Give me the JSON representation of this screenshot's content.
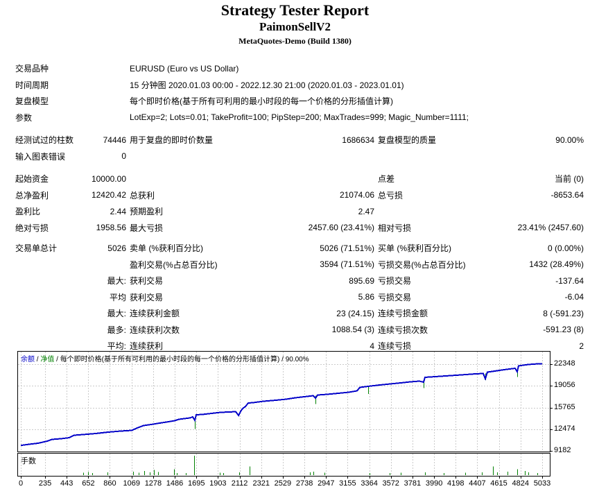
{
  "header": {
    "title": "Strategy Tester Report",
    "subtitle": "PaimonSellV2",
    "server": "MetaQuotes-Demo (Build 1380)"
  },
  "report": {
    "rows": [
      {
        "wide": true,
        "cells": [
          "交易品种",
          "",
          "EURUSD (Euro vs US Dollar)",
          "",
          "",
          ""
        ]
      },
      {
        "wide": true,
        "cells": [
          "时间周期",
          "",
          "15 分钟图 2020.01.03 00:00 - 2022.12.30 21:00 (2020.01.03 - 2023.01.01)",
          "",
          "",
          ""
        ]
      },
      {
        "wide": true,
        "cells": [
          "复盘模型",
          "",
          "每个即时价格(基于所有可利用的最小时段的每一个价格的分形插值计算)",
          "",
          "",
          ""
        ]
      },
      {
        "wide": true,
        "cells": [
          "参数",
          "",
          "LotExp=2; Lots=0.01; TakeProfit=100; PipStep=200; MaxTrades=999; Magic_Number=1111;",
          "",
          "",
          ""
        ]
      },
      {
        "gap": 9,
        "cells": [
          "经测试过的柱数",
          "74446",
          "用于复盘的即时价数量",
          "1686634",
          "复盘模型的质量",
          "90.00%"
        ]
      },
      {
        "cells": [
          "输入图表错误",
          "0",
          "",
          "",
          "",
          ""
        ]
      },
      {
        "gap": 9,
        "cells": [
          "起始资金",
          "10000.00",
          "",
          "",
          "点差",
          "当前 (0)"
        ]
      },
      {
        "cells": [
          "总净盈利",
          "12420.42",
          "总获利",
          "21074.06",
          "总亏损",
          "-8653.64"
        ]
      },
      {
        "cells": [
          "盈利比",
          "2.44",
          "预期盈利",
          "2.47",
          "",
          ""
        ]
      },
      {
        "cells": [
          "绝对亏损",
          "1958.56",
          "最大亏损",
          "2457.60 (23.41%)",
          "相对亏损",
          "23.41% (2457.60)"
        ]
      },
      {
        "gap": 6,
        "cells": [
          "交易单总计",
          "5026",
          "卖单 (%获利百分比)",
          "5026 (71.51%)",
          "买单 (%获利百分比)",
          "0 (0.00%)"
        ]
      },
      {
        "cells": [
          "",
          "",
          "盈利交易(%占总百分比)",
          "3594 (71.51%)",
          "亏损交易(%占总百分比)",
          "1432 (28.49%)"
        ]
      },
      {
        "cells": [
          "",
          "最大:",
          "获利交易",
          "895.69",
          "亏损交易",
          "-137.64"
        ]
      },
      {
        "cells": [
          "",
          "平均",
          "获利交易",
          "5.86",
          "亏损交易",
          "-6.04"
        ]
      },
      {
        "cells": [
          "",
          "最大:",
          "连续获利金额",
          "23 (24.15)",
          "连续亏损金额",
          "8 (-591.23)"
        ]
      },
      {
        "cells": [
          "",
          "最多:",
          "连续获利次数",
          "1088.54 (3)",
          "连续亏损次数",
          "-591.23 (8)"
        ]
      },
      {
        "cells": [
          "",
          "平均:",
          "连续获利",
          "4",
          "连续亏损",
          "2"
        ]
      }
    ]
  },
  "chart_data": {
    "type": "line",
    "legend": {
      "balance": "余额",
      "equity": "净值",
      "model": "每个即时价格(基于所有可利用的最小时段的每一个价格的分形插值计算)",
      "quality": "90.00%",
      "sep": " / "
    },
    "x_ticks": [
      0,
      235,
      443,
      652,
      860,
      1069,
      1278,
      1486,
      1695,
      1903,
      2112,
      2321,
      2529,
      2738,
      2947,
      3155,
      3364,
      3572,
      3781,
      3990,
      4198,
      4407,
      4615,
      4824,
      5033
    ],
    "y_ticks": [
      22348,
      19056,
      15765,
      12474,
      9182
    ],
    "x_range": [
      0,
      5033
    ],
    "grid": true,
    "colors": {
      "balance": "#0000C8",
      "equity": "#008000",
      "grid": "#CACACA",
      "frame": "#000000"
    },
    "balance_series": [
      [
        0,
        10000
      ],
      [
        80,
        10183
      ],
      [
        167,
        10341
      ],
      [
        254,
        10657
      ],
      [
        301,
        10920
      ],
      [
        388,
        11025
      ],
      [
        468,
        11183
      ],
      [
        515,
        11552
      ],
      [
        602,
        11657
      ],
      [
        723,
        11815
      ],
      [
        843,
        12026
      ],
      [
        964,
        12184
      ],
      [
        1071,
        12289
      ],
      [
        1124,
        12658
      ],
      [
        1185,
        13027
      ],
      [
        1258,
        13185
      ],
      [
        1339,
        13395
      ],
      [
        1426,
        13606
      ],
      [
        1486,
        13764
      ],
      [
        1526,
        13975
      ],
      [
        1580,
        14080
      ],
      [
        1633,
        14185
      ],
      [
        1660,
        14343
      ],
      [
        1680,
        13817
      ],
      [
        1693,
        14659
      ],
      [
        1754,
        14712
      ],
      [
        1841,
        14870
      ],
      [
        1928,
        15028
      ],
      [
        2008,
        15081
      ],
      [
        2075,
        15133
      ],
      [
        2102,
        14554
      ],
      [
        2122,
        15186
      ],
      [
        2142,
        15607
      ],
      [
        2169,
        15923
      ],
      [
        2195,
        16450
      ],
      [
        2242,
        16502
      ],
      [
        2343,
        16713
      ],
      [
        2463,
        16871
      ],
      [
        2563,
        17029
      ],
      [
        2650,
        17240
      ],
      [
        2764,
        17450
      ],
      [
        2824,
        17556
      ],
      [
        2845,
        17187
      ],
      [
        2865,
        17661
      ],
      [
        2958,
        17766
      ],
      [
        3065,
        17924
      ],
      [
        3166,
        18082
      ],
      [
        3246,
        18293
      ],
      [
        3273,
        18820
      ],
      [
        3353,
        18978
      ],
      [
        3380,
        19030
      ],
      [
        3467,
        19188
      ],
      [
        3567,
        19346
      ],
      [
        3668,
        19504
      ],
      [
        3761,
        19662
      ],
      [
        3848,
        19767
      ],
      [
        3888,
        19609
      ],
      [
        3902,
        20347
      ],
      [
        4002,
        20452
      ],
      [
        4103,
        20557
      ],
      [
        4203,
        20663
      ],
      [
        4297,
        20768
      ],
      [
        4390,
        20873
      ],
      [
        4464,
        20926
      ],
      [
        4484,
        20136
      ],
      [
        4504,
        21137
      ],
      [
        4598,
        21347
      ],
      [
        4691,
        21558
      ],
      [
        4772,
        21716
      ],
      [
        4792,
        21189
      ],
      [
        4805,
        22084
      ],
      [
        4899,
        22295
      ],
      [
        4993,
        22400
      ],
      [
        5033,
        22420
      ]
    ],
    "equity_dips": [
      [
        1680,
        14343,
        12500
      ],
      [
        2845,
        17556,
        16300
      ],
      [
        3353,
        18978,
        17800
      ],
      [
        3888,
        19767,
        18700
      ],
      [
        4484,
        20926,
        19900
      ],
      [
        4792,
        21716,
        20400
      ]
    ],
    "lots_panel": {
      "label": "手数",
      "bars": [
        [
          602,
          0.12
        ],
        [
          649,
          0.16
        ],
        [
          689,
          0.1
        ],
        [
          837,
          0.14
        ],
        [
          1084,
          0.18
        ],
        [
          1138,
          0.12
        ],
        [
          1191,
          0.22
        ],
        [
          1245,
          0.14
        ],
        [
          1285,
          0.26
        ],
        [
          1325,
          0.16
        ],
        [
          1479,
          0.3
        ],
        [
          1506,
          0.1
        ],
        [
          1593,
          0.1
        ],
        [
          1673,
          1.0
        ],
        [
          1921,
          0.12
        ],
        [
          1954,
          0.1
        ],
        [
          2108,
          0.15
        ],
        [
          2209,
          0.45
        ],
        [
          2791,
          0.14
        ],
        [
          2824,
          0.18
        ],
        [
          2931,
          0.12
        ],
        [
          3367,
          0.1
        ],
        [
          3561,
          0.1
        ],
        [
          3668,
          0.12
        ],
        [
          3902,
          0.14
        ],
        [
          4083,
          0.1
        ],
        [
          4290,
          0.12
        ],
        [
          4451,
          0.14
        ],
        [
          4558,
          0.45
        ],
        [
          4598,
          0.15
        ],
        [
          4698,
          0.18
        ],
        [
          4792,
          0.3
        ],
        [
          4866,
          0.22
        ],
        [
          4899,
          0.15
        ],
        [
          4986,
          0.1
        ]
      ]
    }
  }
}
